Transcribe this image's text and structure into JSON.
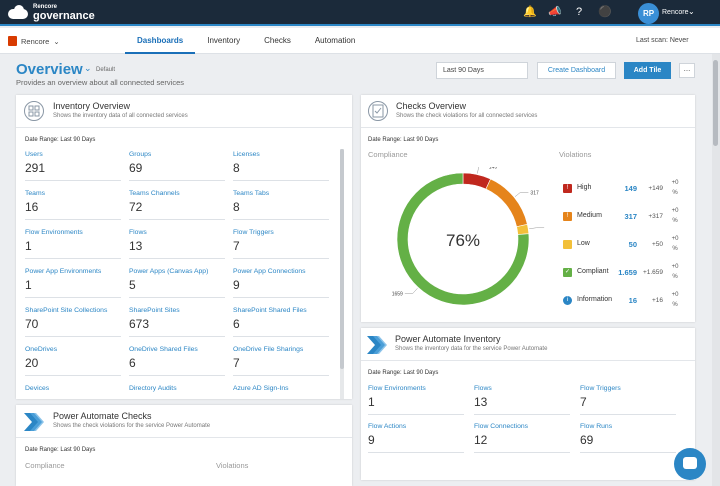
{
  "header": {
    "logo_small": "Rencore",
    "logo_big": "governance",
    "icons": [
      "bell-icon",
      "megaphone-icon",
      "help-icon",
      "chat-bubble-icon"
    ],
    "avatar_initials": "RP",
    "user_name": "Rencore"
  },
  "nav": {
    "org": "Rencore",
    "tabs": [
      "Dashboards",
      "Inventory",
      "Checks",
      "Automation"
    ],
    "active_tab": "Dashboards",
    "last_scan": "Last scan: Never"
  },
  "page": {
    "title": "Overview",
    "badge": "Default",
    "subtitle": "Provides an overview about all connected services",
    "date_range_value": "Last 90 Days",
    "create_dashboard": "Create Dashboard",
    "add_tile": "Add Tile",
    "more": "..."
  },
  "inventory": {
    "title": "Inventory Overview",
    "subtitle": "Shows the inventory data of all connected services",
    "date_range": "Date Range: Last 90 Days",
    "items": [
      {
        "label": "Users",
        "value": "291"
      },
      {
        "label": "Groups",
        "value": "69"
      },
      {
        "label": "Licenses",
        "value": "8"
      },
      {
        "label": "Teams",
        "value": "16"
      },
      {
        "label": "Teams Channels",
        "value": "72"
      },
      {
        "label": "Teams Tabs",
        "value": "8"
      },
      {
        "label": "Flow Environments",
        "value": "1"
      },
      {
        "label": "Flows",
        "value": "13"
      },
      {
        "label": "Flow Triggers",
        "value": "7"
      },
      {
        "label": "Power App Environments",
        "value": "1"
      },
      {
        "label": "Power Apps (Canvas App)",
        "value": "5"
      },
      {
        "label": "Power App Connections",
        "value": "9"
      },
      {
        "label": "SharePoint Site Collections",
        "value": "70"
      },
      {
        "label": "SharePoint Sites",
        "value": "673"
      },
      {
        "label": "SharePoint Shared Files",
        "value": "6"
      },
      {
        "label": "OneDrives",
        "value": "20"
      },
      {
        "label": "OneDrive Shared Files",
        "value": "6"
      },
      {
        "label": "OneDrive File Sharings",
        "value": "7"
      },
      {
        "label": "Devices",
        "value": ""
      },
      {
        "label": "Directory Audits",
        "value": ""
      },
      {
        "label": "Azure AD Sign-Ins",
        "value": ""
      }
    ]
  },
  "checks": {
    "title": "Checks Overview",
    "subtitle": "Shows the check violations for all connected services",
    "date_range": "Date Range: Last 90 Days",
    "compliance_label": "Compliance",
    "violations_label": "Violations",
    "center_pct": "76%",
    "donut_labels": {
      "high": "149",
      "medium": "317",
      "low": "50",
      "compliant": "1659"
    },
    "donut_values": {
      "high": 149,
      "medium": 317,
      "low": 50,
      "compliant": 1659
    },
    "colors": {
      "high": "#c0281e",
      "medium": "#e5841b",
      "low": "#f2c03a",
      "compliant": "#64b046",
      "info": "#2b86c5"
    },
    "rows": [
      {
        "key": "high",
        "label": "High",
        "value": "149",
        "delta": "+149",
        "pct_top": "+0",
        "pct_bottom": "%"
      },
      {
        "key": "medium",
        "label": "Medium",
        "value": "317",
        "delta": "+317",
        "pct_top": "+0",
        "pct_bottom": "%"
      },
      {
        "key": "low",
        "label": "Low",
        "value": "50",
        "delta": "+50",
        "pct_top": "+0",
        "pct_bottom": "%"
      },
      {
        "key": "compliant",
        "label": "Compliant",
        "value": "1.659",
        "delta": "+1.659",
        "pct_top": "+0",
        "pct_bottom": "%"
      },
      {
        "key": "info",
        "label": "Information",
        "value": "16",
        "delta": "+16",
        "pct_top": "+0",
        "pct_bottom": "%"
      }
    ]
  },
  "pa_inventory": {
    "title": "Power Automate Inventory",
    "subtitle": "Shows the inventory data for the service Power Automate",
    "date_range": "Date Range: Last 90 Days",
    "items": [
      {
        "label": "Flow Environments",
        "value": "1"
      },
      {
        "label": "Flows",
        "value": "13"
      },
      {
        "label": "Flow Triggers",
        "value": "7"
      },
      {
        "label": "Flow Actions",
        "value": "9"
      },
      {
        "label": "Flow Connections",
        "value": "12"
      },
      {
        "label": "Flow Runs",
        "value": "69"
      }
    ]
  },
  "pa_checks": {
    "title": "Power Automate Checks",
    "subtitle": "Shows the check violations for the service Power Automate",
    "date_range": "Date Range: Last 90 Days",
    "compliance_label": "Compliance",
    "violations_label": "Violations"
  }
}
